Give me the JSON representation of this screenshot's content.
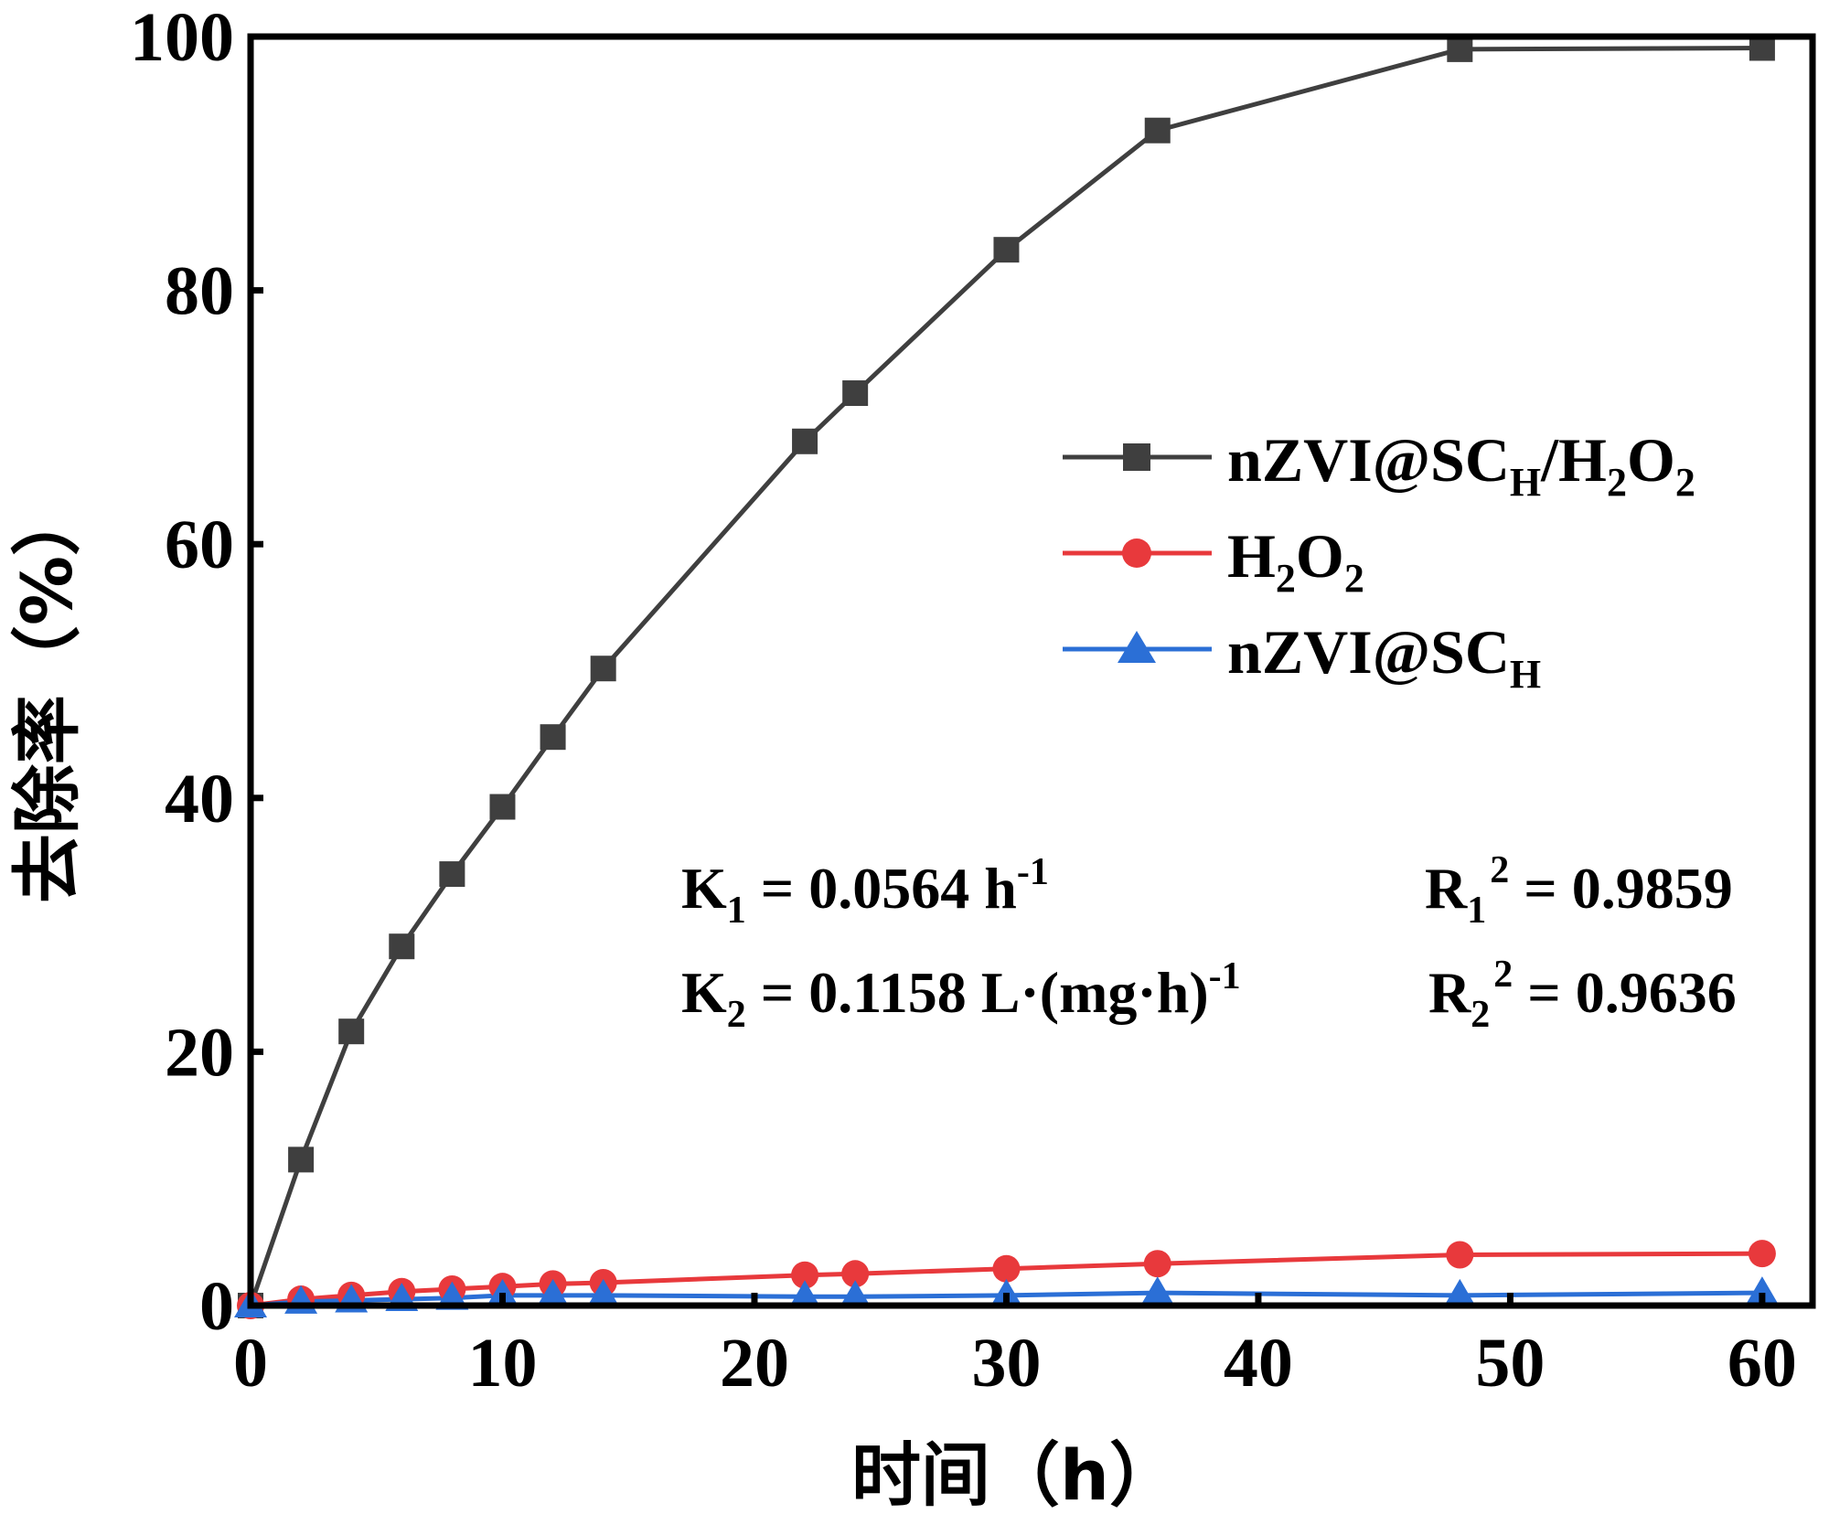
{
  "chart_data": {
    "type": "line",
    "title": "",
    "xlabel": "时间（h）",
    "ylabel": "去除率（%）",
    "xlim": [
      0,
      62
    ],
    "ylim": [
      0,
      100
    ],
    "x_ticks": [
      0,
      10,
      20,
      30,
      40,
      50,
      60
    ],
    "y_ticks": [
      0,
      20,
      40,
      60,
      80,
      100
    ],
    "x_tick_labels": [
      "0",
      "10",
      "20",
      "30",
      "40",
      "50",
      "60"
    ],
    "y_tick_labels": [
      "0",
      "20",
      "40",
      "60",
      "80",
      "100"
    ],
    "grid": false,
    "legend_position": "right",
    "series": [
      {
        "name": "nZVI@SC_H/H2O2",
        "legend_main": "nZVI@SC",
        "legend_sub": "H",
        "legend_tail": "/H",
        "legend_sub2": "2",
        "legend_tail2": "O",
        "legend_sub3": "2",
        "color": "#3f3f3f",
        "marker": "square",
        "x": [
          0,
          2,
          4,
          6,
          8,
          10,
          12,
          14,
          22,
          24,
          30,
          36,
          48,
          60
        ],
        "y": [
          0,
          11.5,
          21.6,
          28.3,
          34.0,
          39.3,
          44.8,
          50.2,
          68.1,
          71.9,
          83.2,
          92.6,
          99.0,
          99.1
        ]
      },
      {
        "name": "H2O2",
        "legend_main": "H",
        "legend_sub": "2",
        "legend_tail": "O",
        "legend_sub2": "2",
        "color": "#e8393c",
        "marker": "circle",
        "x": [
          0,
          2,
          4,
          6,
          8,
          10,
          12,
          14,
          22,
          24,
          30,
          36,
          48,
          60
        ],
        "y": [
          0,
          0.5,
          0.8,
          1.1,
          1.3,
          1.5,
          1.7,
          1.8,
          2.4,
          2.5,
          2.9,
          3.3,
          4.0,
          4.1
        ]
      },
      {
        "name": "nZVI@SC_H",
        "legend_main": "nZVI@SC",
        "legend_sub": "H",
        "color": "#2b6fd6",
        "marker": "triangle",
        "x": [
          0,
          2,
          4,
          6,
          8,
          10,
          12,
          14,
          22,
          24,
          30,
          36,
          48,
          60
        ],
        "y": [
          0,
          0.3,
          0.4,
          0.5,
          0.6,
          0.8,
          0.8,
          0.8,
          0.7,
          0.7,
          0.8,
          1.0,
          0.8,
          1.0
        ]
      }
    ],
    "annotations": {
      "k1": {
        "main": "K",
        "sub": "1",
        "tail": " = 0.0564 h",
        "sup": "-1"
      },
      "k2": {
        "main": "K",
        "sub": "2",
        "tail": " = 0.1158 L·(mg·h)",
        "sup": "-1"
      },
      "r1": {
        "main": "R",
        "sub": "1",
        "sup": "2",
        "tail": " = 0.9859"
      },
      "r2": {
        "main": "R",
        "sub": "2",
        "sup": "2",
        "tail": " = 0.9636"
      }
    }
  }
}
